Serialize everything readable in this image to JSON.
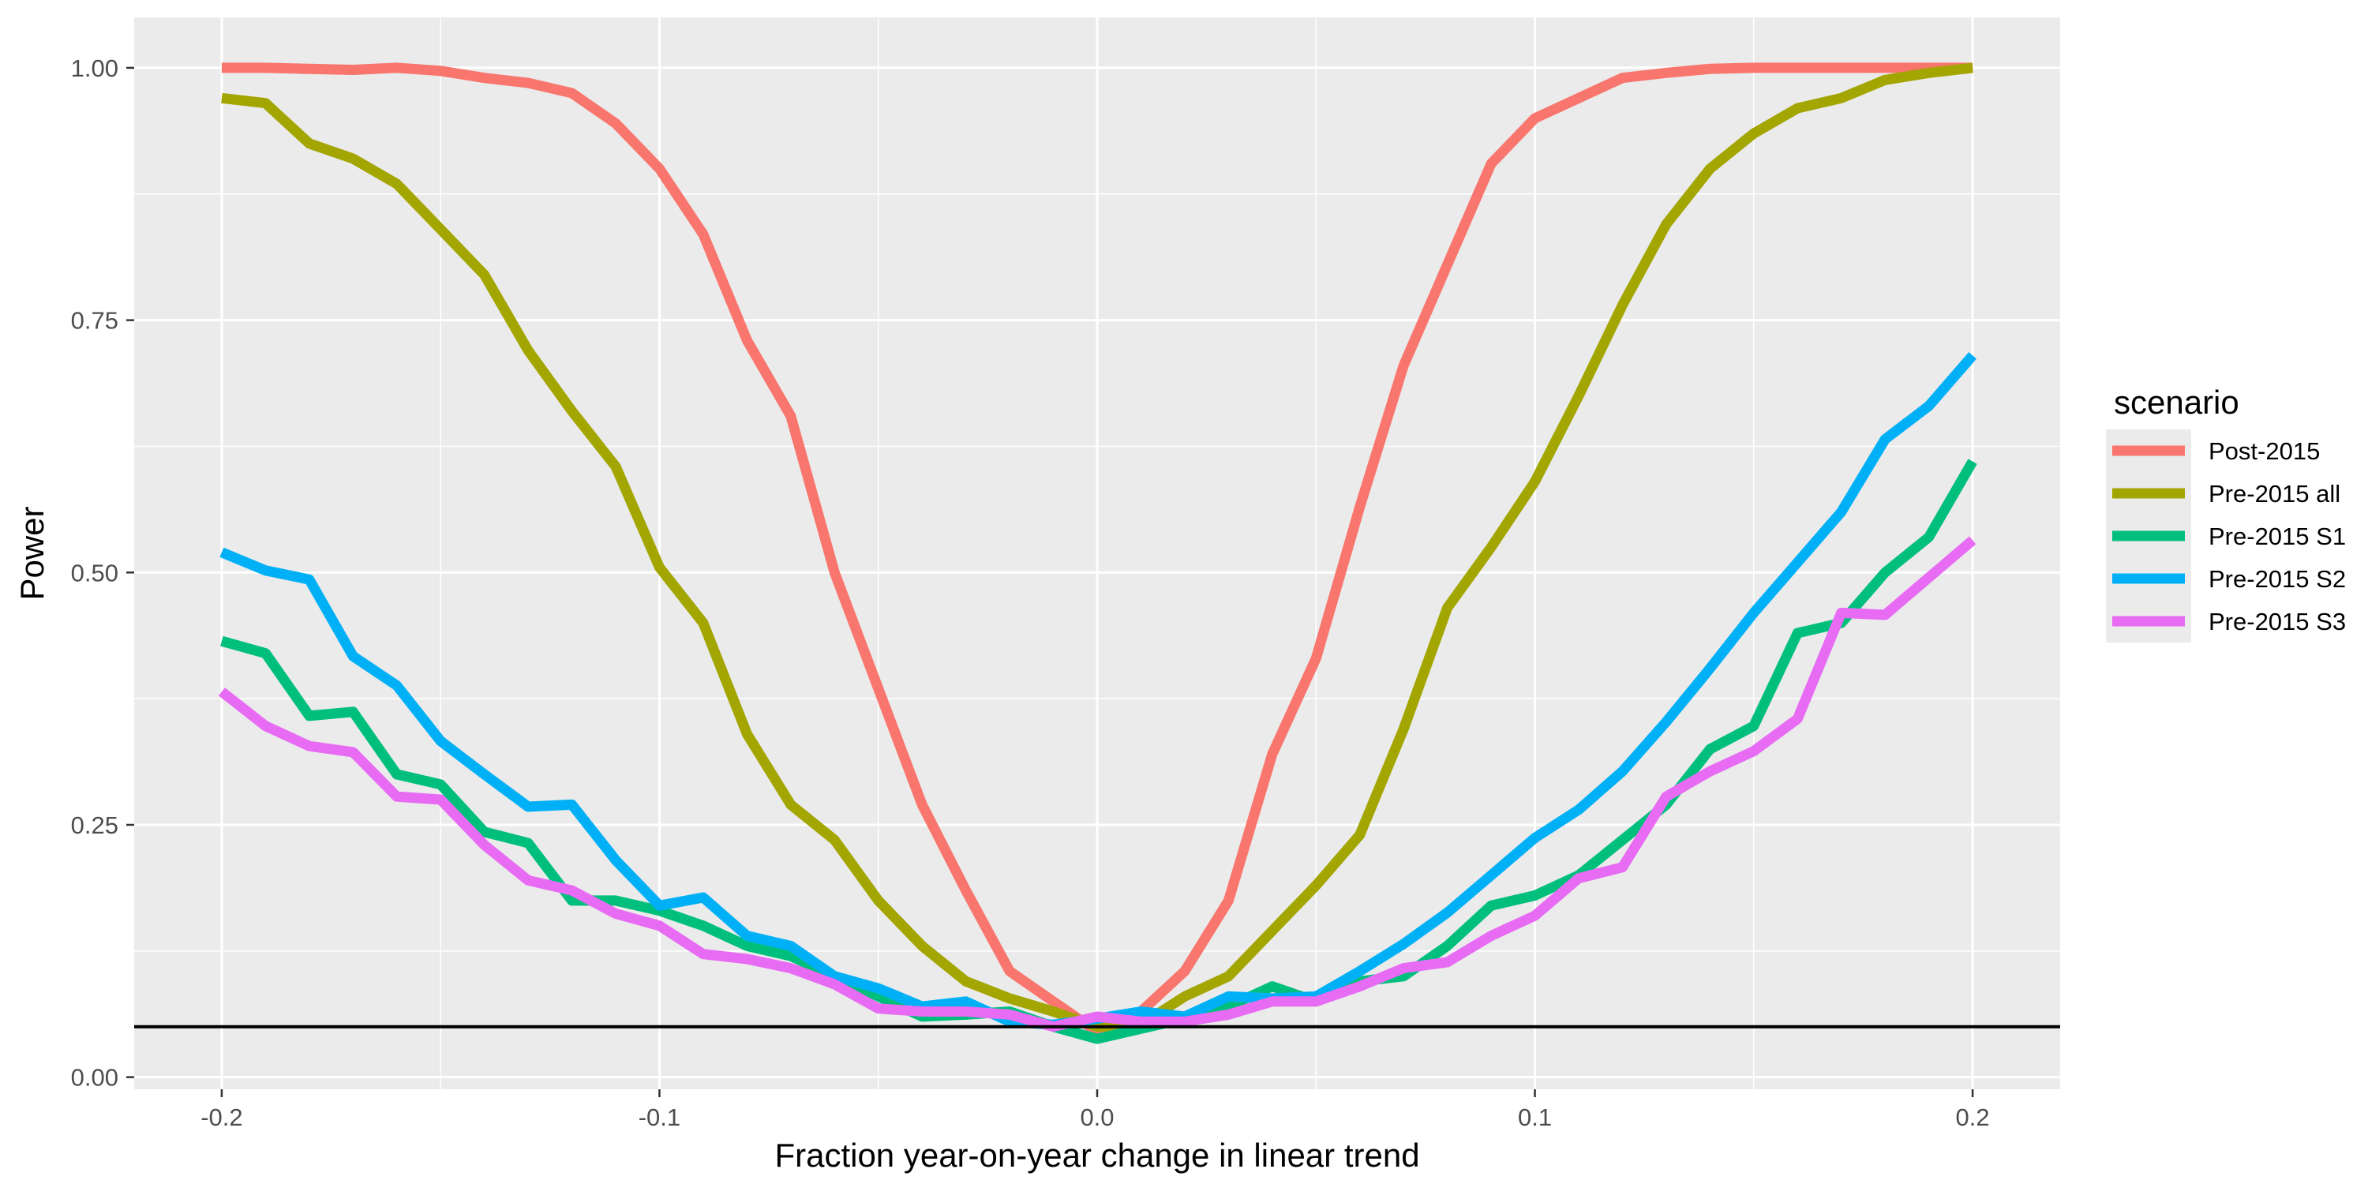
{
  "chart_data": {
    "type": "line",
    "xlabel": "Fraction year-on-year change in linear trend",
    "ylabel": "Power",
    "xlim": [
      -0.22,
      0.22
    ],
    "ylim": [
      -0.012,
      1.05
    ],
    "x_ticks": [
      -0.2,
      -0.1,
      0.0,
      0.1,
      0.2
    ],
    "x_tick_labels": [
      "-0.2",
      "-0.1",
      "0.0",
      "0.1",
      "0.2"
    ],
    "y_ticks": [
      0.0,
      0.25,
      0.5,
      0.75,
      1.0
    ],
    "y_tick_labels": [
      "0.00",
      "0.25",
      "0.50",
      "0.75",
      "1.00"
    ],
    "grid": true,
    "reference_line": 0.05,
    "legend": {
      "title": "scenario",
      "position": "right"
    },
    "x": [
      -0.2,
      -0.19,
      -0.18,
      -0.17,
      -0.16,
      -0.15,
      -0.14,
      -0.13,
      -0.12,
      -0.11,
      -0.1,
      -0.09,
      -0.08,
      -0.07,
      -0.06,
      -0.05,
      -0.04,
      -0.03,
      -0.02,
      -0.01,
      0.0,
      0.01,
      0.02,
      0.03,
      0.04,
      0.05,
      0.06,
      0.07,
      0.08,
      0.09,
      0.1,
      0.11,
      0.12,
      0.13,
      0.14,
      0.15,
      0.16,
      0.17,
      0.18,
      0.19,
      0.2
    ],
    "series": [
      {
        "name": "Post-2015",
        "color": "#F8766D",
        "values": [
          1.0,
          1.0,
          0.999,
          0.998,
          1.0,
          0.997,
          0.99,
          0.985,
          0.975,
          0.945,
          0.9,
          0.835,
          0.73,
          0.655,
          0.5,
          0.385,
          0.27,
          0.185,
          0.105,
          0.075,
          0.045,
          0.065,
          0.105,
          0.175,
          0.32,
          0.415,
          0.565,
          0.705,
          0.805,
          0.905,
          0.95,
          0.97,
          0.99,
          0.995,
          0.999,
          1.0,
          1.0,
          1.0,
          1.0,
          1.0,
          1.0
        ]
      },
      {
        "name": "Pre-2015 all",
        "color": "#A3A500",
        "values": [
          0.97,
          0.965,
          0.925,
          0.91,
          0.885,
          0.84,
          0.795,
          0.72,
          0.66,
          0.605,
          0.505,
          0.45,
          0.34,
          0.27,
          0.235,
          0.175,
          0.13,
          0.095,
          0.078,
          0.065,
          0.05,
          0.052,
          0.08,
          0.1,
          0.145,
          0.19,
          0.24,
          0.345,
          0.465,
          0.525,
          0.59,
          0.675,
          0.765,
          0.845,
          0.9,
          0.935,
          0.96,
          0.97,
          0.988,
          0.995,
          1.0
        ]
      },
      {
        "name": "Pre-2015 S1",
        "color": "#00BF7D",
        "values": [
          0.432,
          0.42,
          0.358,
          0.362,
          0.3,
          0.29,
          0.243,
          0.232,
          0.175,
          0.175,
          0.165,
          0.15,
          0.13,
          0.12,
          0.1,
          0.08,
          0.06,
          0.062,
          0.065,
          0.05,
          0.038,
          0.048,
          0.058,
          0.07,
          0.09,
          0.075,
          0.095,
          0.1,
          0.13,
          0.17,
          0.18,
          0.2,
          0.235,
          0.27,
          0.325,
          0.348,
          0.44,
          0.45,
          0.5,
          0.535,
          0.61
        ]
      },
      {
        "name": "Pre-2015 S2",
        "color": "#00B0F6",
        "values": [
          0.52,
          0.502,
          0.493,
          0.417,
          0.388,
          0.333,
          0.3,
          0.268,
          0.27,
          0.215,
          0.17,
          0.178,
          0.14,
          0.13,
          0.1,
          0.088,
          0.07,
          0.075,
          0.055,
          0.052,
          0.058,
          0.065,
          0.06,
          0.08,
          0.078,
          0.08,
          0.105,
          0.132,
          0.163,
          0.2,
          0.237,
          0.265,
          0.303,
          0.352,
          0.405,
          0.46,
          0.51,
          0.56,
          0.632,
          0.665,
          0.715
        ]
      },
      {
        "name": "Pre-2015 S3",
        "color": "#E76BF3",
        "values": [
          0.382,
          0.348,
          0.328,
          0.322,
          0.278,
          0.275,
          0.23,
          0.195,
          0.185,
          0.162,
          0.15,
          0.122,
          0.117,
          0.108,
          0.092,
          0.068,
          0.065,
          0.065,
          0.062,
          0.05,
          0.06,
          0.055,
          0.055,
          0.062,
          0.075,
          0.075,
          0.09,
          0.108,
          0.114,
          0.14,
          0.16,
          0.197,
          0.208,
          0.278,
          0.303,
          0.323,
          0.355,
          0.46,
          0.458,
          0.495,
          0.532
        ]
      }
    ]
  }
}
